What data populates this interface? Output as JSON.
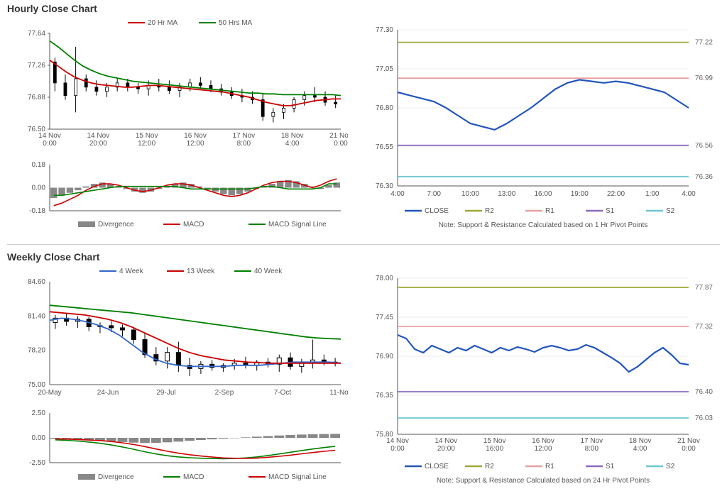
{
  "sections": {
    "hourly": {
      "title": "Hourly Close Chart"
    },
    "weekly": {
      "title": "Weekly Close Chart"
    }
  },
  "colors": {
    "red": "#cc0000",
    "green": "#008000",
    "blue": "#3366cc",
    "darkblue": "#2255bb",
    "grey": "#888888",
    "olive": "#9ea836",
    "pink": "#e8a0a0",
    "purple": "#8a6bbe",
    "cyan": "#6ec7d0",
    "black": "#000000",
    "axis": "#555555",
    "grid": "#dddddd",
    "label_right": "#666666"
  },
  "hourly_price": {
    "ylim": [
      76.5,
      77.64
    ],
    "yticks": [
      76.5,
      76.88,
      77.26,
      77.64
    ],
    "xticks": [
      "14 Nov 0:00",
      "14 Nov 20:00",
      "15 Nov 12:00",
      "16 Nov 12:00",
      "17 Nov 8:00",
      "18 Nov 4:00",
      "21 Nov 0:00"
    ],
    "legend": [
      {
        "label": "20 Hr MA",
        "color": "#cc0000"
      },
      {
        "label": "50 Hrs MA",
        "color": "#008000"
      }
    ],
    "ma20": [
      77.32,
      77.25,
      77.18,
      77.12,
      77.08,
      77.05,
      77.03,
      77.02,
      77.01,
      77.0,
      77.0,
      77.01,
      77.02,
      77.02,
      77.01,
      77.0,
      76.99,
      76.98,
      76.97,
      76.96,
      76.95,
      76.94,
      76.92,
      76.9,
      76.88,
      76.85,
      76.82,
      76.8,
      76.78,
      76.78,
      76.8,
      76.82,
      76.84,
      76.85,
      76.86,
      76.86
    ],
    "ma50": [
      77.55,
      77.48,
      77.4,
      77.32,
      77.25,
      77.2,
      77.16,
      77.13,
      77.11,
      77.09,
      77.07,
      77.06,
      77.05,
      77.04,
      77.03,
      77.02,
      77.01,
      77.0,
      76.99,
      76.98,
      76.97,
      76.96,
      76.95,
      76.94,
      76.93,
      76.93,
      76.92,
      76.92,
      76.91,
      76.91,
      76.91,
      76.91,
      76.91,
      76.91,
      76.91,
      76.9
    ],
    "candles": [
      {
        "o": 77.3,
        "h": 77.35,
        "l": 76.95,
        "c": 77.05
      },
      {
        "o": 77.05,
        "h": 77.15,
        "l": 76.85,
        "c": 76.9
      },
      {
        "o": 76.9,
        "h": 77.48,
        "l": 76.7,
        "c": 77.1
      },
      {
        "o": 77.1,
        "h": 77.15,
        "l": 76.95,
        "c": 77.0
      },
      {
        "o": 77.0,
        "h": 77.08,
        "l": 76.9,
        "c": 76.95
      },
      {
        "o": 76.95,
        "h": 77.05,
        "l": 76.88,
        "c": 77.0
      },
      {
        "o": 77.0,
        "h": 77.1,
        "l": 76.95,
        "c": 77.05
      },
      {
        "o": 77.05,
        "h": 77.1,
        "l": 76.95,
        "c": 77.0
      },
      {
        "o": 77.0,
        "h": 77.05,
        "l": 76.92,
        "c": 76.98
      },
      {
        "o": 76.98,
        "h": 77.08,
        "l": 76.9,
        "c": 77.02
      },
      {
        "o": 77.02,
        "h": 77.1,
        "l": 76.95,
        "c": 77.0
      },
      {
        "o": 77.0,
        "h": 77.08,
        "l": 76.92,
        "c": 76.96
      },
      {
        "o": 76.96,
        "h": 77.05,
        "l": 76.88,
        "c": 77.0
      },
      {
        "o": 77.0,
        "h": 77.1,
        "l": 76.95,
        "c": 77.05
      },
      {
        "o": 77.05,
        "h": 77.12,
        "l": 76.98,
        "c": 77.02
      },
      {
        "o": 77.02,
        "h": 77.08,
        "l": 76.94,
        "c": 76.98
      },
      {
        "o": 76.98,
        "h": 77.04,
        "l": 76.9,
        "c": 76.94
      },
      {
        "o": 76.94,
        "h": 77.0,
        "l": 76.86,
        "c": 76.9
      },
      {
        "o": 76.9,
        "h": 76.98,
        "l": 76.82,
        "c": 76.88
      },
      {
        "o": 76.88,
        "h": 76.95,
        "l": 76.8,
        "c": 76.85
      },
      {
        "o": 76.85,
        "h": 76.92,
        "l": 76.6,
        "c": 76.65
      },
      {
        "o": 76.65,
        "h": 76.75,
        "l": 76.58,
        "c": 76.7
      },
      {
        "o": 76.7,
        "h": 76.8,
        "l": 76.62,
        "c": 76.75
      },
      {
        "o": 76.75,
        "h": 76.88,
        "l": 76.7,
        "c": 76.85
      },
      {
        "o": 76.85,
        "h": 76.95,
        "l": 76.78,
        "c": 76.9
      },
      {
        "o": 76.9,
        "h": 77.0,
        "l": 76.82,
        "c": 76.88
      },
      {
        "o": 76.88,
        "h": 76.95,
        "l": 76.78,
        "c": 76.82
      },
      {
        "o": 76.82,
        "h": 76.9,
        "l": 76.75,
        "c": 76.8
      }
    ]
  },
  "hourly_macd": {
    "ylim": [
      -0.18,
      0.18
    ],
    "yticks": [
      -0.18,
      0.0,
      0.18
    ],
    "legend": [
      {
        "label": "Divergence",
        "color": "#888888",
        "type": "bar"
      },
      {
        "label": "MACD",
        "color": "#cc0000"
      },
      {
        "label": "MACD Signal Line",
        "color": "#008000"
      }
    ],
    "divergence": [
      -0.08,
      -0.06,
      -0.04,
      -0.02,
      0.01,
      0.03,
      0.04,
      0.03,
      0.01,
      -0.01,
      -0.03,
      -0.04,
      -0.03,
      -0.01,
      0.01,
      0.03,
      0.04,
      0.03,
      0.01,
      -0.01,
      -0.03,
      -0.05,
      -0.06,
      -0.05,
      -0.03,
      -0.01,
      0.01,
      0.03,
      0.05,
      0.06,
      0.05,
      0.03,
      0.01,
      -0.01,
      0.02,
      0.04
    ],
    "macd": [
      -0.14,
      -0.12,
      -0.09,
      -0.06,
      -0.02,
      0.01,
      0.03,
      0.03,
      0.02,
      0.0,
      -0.02,
      -0.03,
      -0.02,
      0.0,
      0.02,
      0.03,
      0.03,
      0.02,
      0.0,
      -0.02,
      -0.04,
      -0.06,
      -0.07,
      -0.06,
      -0.04,
      -0.01,
      0.02,
      0.04,
      0.05,
      0.05,
      0.04,
      0.02,
      0.0,
      0.02,
      0.05,
      0.07
    ],
    "signal": [
      -0.06,
      -0.06,
      -0.05,
      -0.04,
      -0.03,
      -0.02,
      -0.01,
      0.0,
      0.01,
      0.01,
      0.01,
      0.01,
      0.01,
      0.01,
      0.01,
      0.01,
      0.0,
      -0.01,
      -0.01,
      -0.01,
      -0.01,
      -0.01,
      -0.01,
      -0.01,
      -0.01,
      0.0,
      0.01,
      0.01,
      0.0,
      -0.01,
      -0.01,
      -0.01,
      -0.01,
      0.0,
      0.03,
      0.03
    ]
  },
  "hourly_sr": {
    "ylim": [
      76.3,
      77.3
    ],
    "yticks": [
      76.3,
      76.55,
      76.8,
      77.05,
      77.3
    ],
    "xticks": [
      "4:00",
      "7:00",
      "10:00",
      "13:00",
      "16:00",
      "19:00",
      "22:00",
      "1:00",
      "4:00"
    ],
    "close": [
      76.9,
      76.88,
      76.86,
      76.84,
      76.8,
      76.75,
      76.7,
      76.68,
      76.66,
      76.7,
      76.75,
      76.8,
      76.86,
      76.92,
      76.96,
      76.98,
      76.97,
      76.96,
      76.97,
      76.96,
      76.94,
      76.92,
      76.9,
      76.85,
      76.8
    ],
    "levels": [
      {
        "name": "R2",
        "value": 77.22,
        "color": "#9ea836"
      },
      {
        "name": "R1",
        "value": 76.99,
        "color": "#e8a0a0"
      },
      {
        "name": "S1",
        "value": 76.56,
        "color": "#8a6bbe"
      },
      {
        "name": "S2",
        "value": 76.36,
        "color": "#6ec7d0"
      }
    ],
    "legend": [
      {
        "label": "CLOSE",
        "color": "#2255bb"
      },
      {
        "label": "R2",
        "color": "#9ea836"
      },
      {
        "label": "R1",
        "color": "#e8a0a0"
      },
      {
        "label": "S1",
        "color": "#8a6bbe"
      },
      {
        "label": "S2",
        "color": "#6ec7d0"
      }
    ],
    "note": "Note: Support & Resistance Calculated based on 1 Hr Pivot Points"
  },
  "weekly_price": {
    "ylim": [
      75.0,
      84.6
    ],
    "yticks": [
      75.0,
      78.2,
      81.4,
      84.6
    ],
    "xticks": [
      "20-May",
      "24-Jun",
      "29-Jul",
      "2-Sep",
      "7-Oct",
      "11-Nov"
    ],
    "legend": [
      {
        "label": "4 Week",
        "color": "#3366cc"
      },
      {
        "label": "13 Week",
        "color": "#cc0000"
      },
      {
        "label": "40 Week",
        "color": "#008000"
      }
    ],
    "ma4": [
      81.0,
      81.2,
      81.1,
      80.9,
      80.6,
      80.2,
      79.6,
      78.8,
      78.0,
      77.4,
      77.0,
      76.8,
      76.7,
      76.7,
      76.7,
      76.7,
      76.8,
      76.8,
      76.8,
      76.9,
      77.0,
      77.1,
      77.1,
      77.1,
      77.1,
      77.0
    ],
    "ma13": [
      81.8,
      81.7,
      81.6,
      81.5,
      81.3,
      81.1,
      80.8,
      80.4,
      79.9,
      79.4,
      78.9,
      78.4,
      78.0,
      77.7,
      77.5,
      77.3,
      77.2,
      77.1,
      77.05,
      77.0,
      77.0,
      77.0,
      77.0,
      77.0,
      77.0,
      77.0
    ],
    "ma40": [
      82.4,
      82.3,
      82.2,
      82.1,
      82.0,
      81.9,
      81.8,
      81.7,
      81.55,
      81.4,
      81.25,
      81.1,
      80.95,
      80.8,
      80.65,
      80.5,
      80.35,
      80.2,
      80.05,
      79.9,
      79.75,
      79.6,
      79.45,
      79.35,
      79.3,
      79.25
    ],
    "candles": [
      {
        "o": 80.8,
        "h": 81.5,
        "l": 80.2,
        "c": 81.2,
        "up": true
      },
      {
        "o": 81.2,
        "h": 81.6,
        "l": 80.5,
        "c": 80.9,
        "up": false
      },
      {
        "o": 80.9,
        "h": 81.4,
        "l": 80.3,
        "c": 81.1,
        "up": true
      },
      {
        "o": 81.1,
        "h": 81.3,
        "l": 80.0,
        "c": 80.4,
        "up": false
      },
      {
        "o": 80.4,
        "h": 80.8,
        "l": 79.8,
        "c": 80.5,
        "up": true
      },
      {
        "o": 80.5,
        "h": 80.9,
        "l": 79.9,
        "c": 80.3,
        "up": false
      },
      {
        "o": 80.3,
        "h": 80.6,
        "l": 79.5,
        "c": 80.1,
        "up": false
      },
      {
        "o": 80.1,
        "h": 80.4,
        "l": 78.8,
        "c": 79.2,
        "up": false
      },
      {
        "o": 79.2,
        "h": 79.8,
        "l": 77.5,
        "c": 77.8,
        "up": false
      },
      {
        "o": 77.8,
        "h": 78.5,
        "l": 76.8,
        "c": 77.2,
        "up": false
      },
      {
        "o": 77.2,
        "h": 78.5,
        "l": 76.5,
        "c": 78.0,
        "up": true
      },
      {
        "o": 78.0,
        "h": 79.0,
        "l": 76.2,
        "c": 76.8,
        "up": false
      },
      {
        "o": 76.8,
        "h": 77.5,
        "l": 75.8,
        "c": 76.5,
        "up": false
      },
      {
        "o": 76.5,
        "h": 77.2,
        "l": 76.0,
        "c": 76.9,
        "up": true
      },
      {
        "o": 76.9,
        "h": 77.3,
        "l": 76.3,
        "c": 76.6,
        "up": false
      },
      {
        "o": 76.6,
        "h": 77.0,
        "l": 76.2,
        "c": 76.8,
        "up": true
      },
      {
        "o": 76.8,
        "h": 77.4,
        "l": 76.4,
        "c": 77.0,
        "up": true
      },
      {
        "o": 77.0,
        "h": 77.6,
        "l": 76.5,
        "c": 76.8,
        "up": false
      },
      {
        "o": 76.8,
        "h": 77.3,
        "l": 76.3,
        "c": 77.1,
        "up": true
      },
      {
        "o": 77.1,
        "h": 77.5,
        "l": 76.6,
        "c": 76.9,
        "up": false
      },
      {
        "o": 76.9,
        "h": 77.8,
        "l": 76.2,
        "c": 77.5,
        "up": true
      },
      {
        "o": 77.5,
        "h": 78.0,
        "l": 76.4,
        "c": 76.7,
        "up": false
      },
      {
        "o": 76.7,
        "h": 77.4,
        "l": 76.1,
        "c": 77.1,
        "up": true
      },
      {
        "o": 77.1,
        "h": 79.2,
        "l": 76.5,
        "c": 77.3,
        "up": true
      },
      {
        "o": 77.3,
        "h": 77.8,
        "l": 76.8,
        "c": 77.1,
        "up": false
      },
      {
        "o": 77.1,
        "h": 77.5,
        "l": 76.7,
        "c": 77.0,
        "up": false
      }
    ]
  },
  "weekly_macd": {
    "ylim": [
      -2.5,
      2.5
    ],
    "yticks": [
      -2.5,
      0.0,
      2.5
    ],
    "legend": [
      {
        "label": "Divergence",
        "color": "#888888",
        "type": "bar"
      },
      {
        "label": "MACD",
        "color": "#008000"
      },
      {
        "label": "MACD Signal Line",
        "color": "#cc0000"
      }
    ],
    "divergence": [
      -0.1,
      -0.12,
      -0.15,
      -0.2,
      -0.28,
      -0.35,
      -0.42,
      -0.48,
      -0.52,
      -0.5,
      -0.45,
      -0.38,
      -0.3,
      -0.22,
      -0.15,
      -0.08,
      -0.02,
      0.05,
      0.12,
      0.18,
      0.24,
      0.29,
      0.33,
      0.36,
      0.38,
      0.4
    ],
    "macd": [
      -0.2,
      -0.25,
      -0.32,
      -0.42,
      -0.55,
      -0.72,
      -0.92,
      -1.15,
      -1.4,
      -1.62,
      -1.8,
      -1.92,
      -2.0,
      -2.05,
      -2.08,
      -2.1,
      -2.08,
      -2.02,
      -1.92,
      -1.78,
      -1.62,
      -1.45,
      -1.28,
      -1.12,
      -0.98,
      -0.85
    ],
    "signal": [
      -0.1,
      -0.13,
      -0.17,
      -0.22,
      -0.27,
      -0.37,
      -0.5,
      -0.67,
      -0.88,
      -1.12,
      -1.35,
      -1.54,
      -1.7,
      -1.83,
      -1.93,
      -2.02,
      -2.06,
      -2.07,
      -2.04,
      -1.96,
      -1.86,
      -1.74,
      -1.61,
      -1.48,
      -1.36,
      -1.25
    ]
  },
  "weekly_sr": {
    "ylim": [
      75.8,
      78.0
    ],
    "yticks": [
      75.8,
      76.35,
      76.9,
      77.45,
      78.0
    ],
    "xticks": [
      "14 Nov 0:00",
      "14 Nov 20:00",
      "15 Nov 16:00",
      "16 Nov 12:00",
      "17 Nov 8:00",
      "18 Nov 4:00",
      "21 Nov 0:00"
    ],
    "close": [
      77.2,
      77.15,
      77.0,
      76.95,
      77.05,
      77.0,
      76.95,
      77.02,
      76.98,
      77.05,
      77.0,
      76.95,
      77.02,
      76.98,
      77.03,
      77.0,
      76.96,
      77.02,
      77.05,
      77.02,
      76.98,
      77.0,
      77.06,
      77.02,
      76.95,
      76.88,
      76.8,
      76.68,
      76.75,
      76.85,
      76.95,
      77.02,
      76.92,
      76.8,
      76.78
    ],
    "levels": [
      {
        "name": "R2",
        "value": 77.87,
        "color": "#9ea836"
      },
      {
        "name": "R1",
        "value": 77.32,
        "color": "#e8a0a0"
      },
      {
        "name": "S1",
        "value": 76.4,
        "color": "#8a6bbe"
      },
      {
        "name": "S2",
        "value": 76.03,
        "color": "#6ec7d0"
      }
    ],
    "legend": [
      {
        "label": "CLOSE",
        "color": "#2255bb"
      },
      {
        "label": "R2",
        "color": "#9ea836"
      },
      {
        "label": "R1",
        "color": "#e8a0a0"
      },
      {
        "label": "S1",
        "color": "#8a6bbe"
      },
      {
        "label": "S2",
        "color": "#6ec7d0"
      }
    ],
    "note": "Note: Support & Resistance Calculated based on 24 Hr Pivot Points"
  }
}
